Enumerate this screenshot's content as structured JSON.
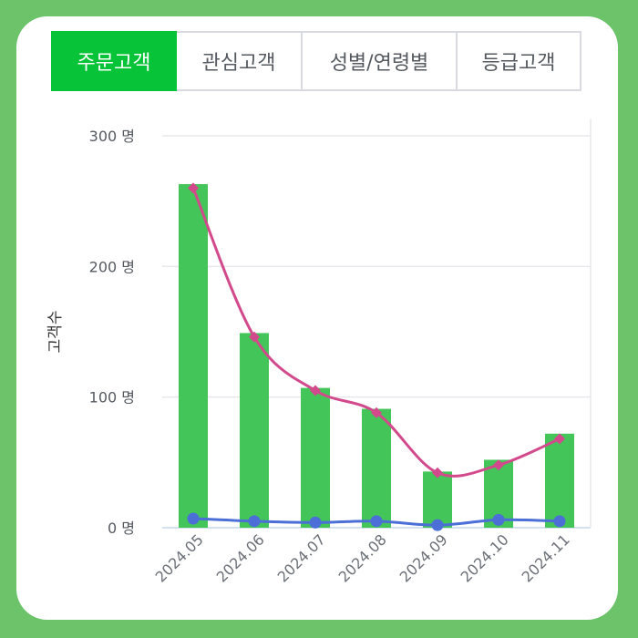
{
  "tabs": [
    {
      "label": "주문고객",
      "active": true
    },
    {
      "label": "관심고객",
      "active": false
    },
    {
      "label": "성별/연령별",
      "active": false
    },
    {
      "label": "등급고객",
      "active": false
    }
  ],
  "colors": {
    "background": "#6cc36a",
    "tab_active": "#07c338",
    "bar": "#44c55a",
    "line_pink": "#d24a8c",
    "line_blue": "#4b6fd6",
    "grid": "#e6e8ec"
  },
  "chart_data": {
    "type": "bar",
    "categories": [
      "2024.05",
      "2024.06",
      "2024.07",
      "2024.08",
      "2024.09",
      "2024.10",
      "2024.11"
    ],
    "ylabel": "고객수",
    "yticks": [
      "0 명",
      "100 명",
      "200 명",
      "300 명"
    ],
    "ylim": [
      0,
      300
    ],
    "grid": true,
    "series": [
      {
        "type": "bar",
        "values": [
          263,
          149,
          107,
          91,
          43,
          52,
          72
        ]
      },
      {
        "type": "line",
        "marker": "diamond",
        "smooth": true,
        "values": [
          260,
          146,
          105,
          88,
          42,
          48,
          68
        ]
      },
      {
        "type": "line",
        "marker": "circle",
        "values": [
          7,
          5,
          4,
          5,
          2,
          6,
          5
        ]
      }
    ]
  }
}
